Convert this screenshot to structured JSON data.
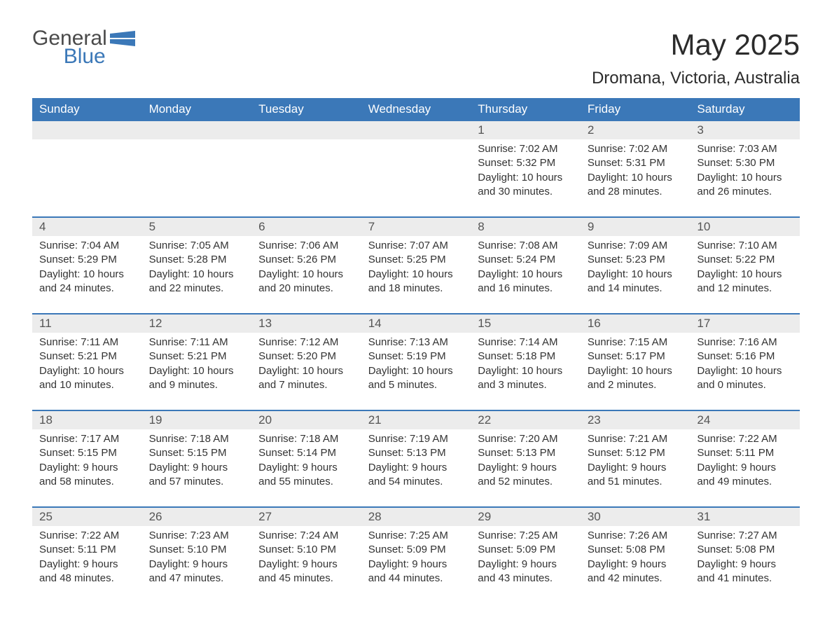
{
  "brand": {
    "name_gray": "General",
    "name_blue": "Blue"
  },
  "title": "May 2025",
  "subtitle": "Dromana, Victoria, Australia",
  "colors": {
    "header_bg": "#3b78b8",
    "header_text": "#ffffff",
    "daynum_bg": "#ececec",
    "week_divider": "#3b78b8",
    "body_text": "#333333",
    "logo_gray": "#4a4a4a",
    "logo_blue": "#3b78b8",
    "background": "#ffffff"
  },
  "days_of_week": [
    "Sunday",
    "Monday",
    "Tuesday",
    "Wednesday",
    "Thursday",
    "Friday",
    "Saturday"
  ],
  "labels": {
    "sunrise": "Sunrise:",
    "sunset": "Sunset:",
    "daylight": "Daylight:"
  },
  "weeks": [
    [
      null,
      null,
      null,
      null,
      {
        "n": "1",
        "sunrise": "7:02 AM",
        "sunset": "5:32 PM",
        "daylight": "10 hours and 30 minutes."
      },
      {
        "n": "2",
        "sunrise": "7:02 AM",
        "sunset": "5:31 PM",
        "daylight": "10 hours and 28 minutes."
      },
      {
        "n": "3",
        "sunrise": "7:03 AM",
        "sunset": "5:30 PM",
        "daylight": "10 hours and 26 minutes."
      }
    ],
    [
      {
        "n": "4",
        "sunrise": "7:04 AM",
        "sunset": "5:29 PM",
        "daylight": "10 hours and 24 minutes."
      },
      {
        "n": "5",
        "sunrise": "7:05 AM",
        "sunset": "5:28 PM",
        "daylight": "10 hours and 22 minutes."
      },
      {
        "n": "6",
        "sunrise": "7:06 AM",
        "sunset": "5:26 PM",
        "daylight": "10 hours and 20 minutes."
      },
      {
        "n": "7",
        "sunrise": "7:07 AM",
        "sunset": "5:25 PM",
        "daylight": "10 hours and 18 minutes."
      },
      {
        "n": "8",
        "sunrise": "7:08 AM",
        "sunset": "5:24 PM",
        "daylight": "10 hours and 16 minutes."
      },
      {
        "n": "9",
        "sunrise": "7:09 AM",
        "sunset": "5:23 PM",
        "daylight": "10 hours and 14 minutes."
      },
      {
        "n": "10",
        "sunrise": "7:10 AM",
        "sunset": "5:22 PM",
        "daylight": "10 hours and 12 minutes."
      }
    ],
    [
      {
        "n": "11",
        "sunrise": "7:11 AM",
        "sunset": "5:21 PM",
        "daylight": "10 hours and 10 minutes."
      },
      {
        "n": "12",
        "sunrise": "7:11 AM",
        "sunset": "5:21 PM",
        "daylight": "10 hours and 9 minutes."
      },
      {
        "n": "13",
        "sunrise": "7:12 AM",
        "sunset": "5:20 PM",
        "daylight": "10 hours and 7 minutes."
      },
      {
        "n": "14",
        "sunrise": "7:13 AM",
        "sunset": "5:19 PM",
        "daylight": "10 hours and 5 minutes."
      },
      {
        "n": "15",
        "sunrise": "7:14 AM",
        "sunset": "5:18 PM",
        "daylight": "10 hours and 3 minutes."
      },
      {
        "n": "16",
        "sunrise": "7:15 AM",
        "sunset": "5:17 PM",
        "daylight": "10 hours and 2 minutes."
      },
      {
        "n": "17",
        "sunrise": "7:16 AM",
        "sunset": "5:16 PM",
        "daylight": "10 hours and 0 minutes."
      }
    ],
    [
      {
        "n": "18",
        "sunrise": "7:17 AM",
        "sunset": "5:15 PM",
        "daylight": "9 hours and 58 minutes."
      },
      {
        "n": "19",
        "sunrise": "7:18 AM",
        "sunset": "5:15 PM",
        "daylight": "9 hours and 57 minutes."
      },
      {
        "n": "20",
        "sunrise": "7:18 AM",
        "sunset": "5:14 PM",
        "daylight": "9 hours and 55 minutes."
      },
      {
        "n": "21",
        "sunrise": "7:19 AM",
        "sunset": "5:13 PM",
        "daylight": "9 hours and 54 minutes."
      },
      {
        "n": "22",
        "sunrise": "7:20 AM",
        "sunset": "5:13 PM",
        "daylight": "9 hours and 52 minutes."
      },
      {
        "n": "23",
        "sunrise": "7:21 AM",
        "sunset": "5:12 PM",
        "daylight": "9 hours and 51 minutes."
      },
      {
        "n": "24",
        "sunrise": "7:22 AM",
        "sunset": "5:11 PM",
        "daylight": "9 hours and 49 minutes."
      }
    ],
    [
      {
        "n": "25",
        "sunrise": "7:22 AM",
        "sunset": "5:11 PM",
        "daylight": "9 hours and 48 minutes."
      },
      {
        "n": "26",
        "sunrise": "7:23 AM",
        "sunset": "5:10 PM",
        "daylight": "9 hours and 47 minutes."
      },
      {
        "n": "27",
        "sunrise": "7:24 AM",
        "sunset": "5:10 PM",
        "daylight": "9 hours and 45 minutes."
      },
      {
        "n": "28",
        "sunrise": "7:25 AM",
        "sunset": "5:09 PM",
        "daylight": "9 hours and 44 minutes."
      },
      {
        "n": "29",
        "sunrise": "7:25 AM",
        "sunset": "5:09 PM",
        "daylight": "9 hours and 43 minutes."
      },
      {
        "n": "30",
        "sunrise": "7:26 AM",
        "sunset": "5:08 PM",
        "daylight": "9 hours and 42 minutes."
      },
      {
        "n": "31",
        "sunrise": "7:27 AM",
        "sunset": "5:08 PM",
        "daylight": "9 hours and 41 minutes."
      }
    ]
  ]
}
